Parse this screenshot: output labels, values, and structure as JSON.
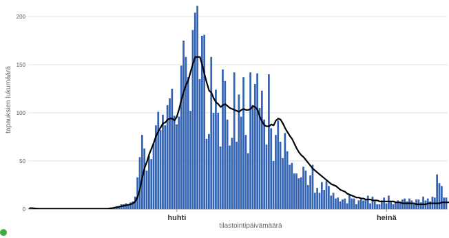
{
  "chart_data": {
    "type": "bar",
    "xlabel": "tilastointipäivämäärä",
    "ylabel": "tapauksien lukumäärä",
    "ylim": [
      0,
      210
    ],
    "yticks": [
      0,
      50,
      100,
      150,
      200
    ],
    "grid": true,
    "x_axis": {
      "start_date": "2020-01-28",
      "end_date": "2020-08-02"
    },
    "x_ticks": [
      {
        "label": "huhti",
        "date": "2020-04-01"
      },
      {
        "label": "heinä",
        "date": "2020-07-01"
      }
    ],
    "colors": {
      "bars": "#3464b4",
      "line": "#000000",
      "grid": "#e2e2e2",
      "legend": "#3cae3a"
    },
    "series": [
      {
        "kind": "bar",
        "values": [
          1,
          0,
          0,
          0,
          0,
          0,
          0,
          0,
          0,
          0,
          0,
          0,
          0,
          0,
          0,
          0,
          0,
          0,
          0,
          0,
          0,
          0,
          0,
          0,
          0,
          0,
          0,
          0,
          0,
          0,
          0,
          0,
          0,
          0,
          0,
          1,
          1,
          2,
          3,
          2,
          5,
          5,
          6,
          4,
          7,
          8,
          13,
          33,
          54,
          77,
          63,
          40,
          55,
          52,
          68,
          87,
          101,
          82,
          98,
          87,
          108,
          115,
          125,
          97,
          88,
          96,
          149,
          175,
          158,
          137,
          102,
          186,
          204,
          211,
          135,
          180,
          181,
          73,
          78,
          158,
          100,
          124,
          100,
          65,
          145,
          133,
          93,
          66,
          74,
          142,
          70,
          119,
          96,
          137,
          77,
          58,
          142,
          108,
          130,
          141,
          105,
          123,
          93,
          67,
          140,
          84,
          50,
          77,
          92,
          70,
          53,
          79,
          60,
          46,
          48,
          37,
          37,
          32,
          33,
          44,
          40,
          25,
          35,
          46,
          17,
          22,
          17,
          28,
          20,
          29,
          24,
          14,
          17,
          11,
          12,
          8,
          10,
          11,
          6,
          15,
          11,
          11,
          5,
          9,
          10,
          9,
          10,
          14,
          6,
          13,
          8,
          5,
          5,
          9,
          12,
          6,
          14,
          8,
          5,
          7,
          9,
          7,
          10,
          11,
          8,
          11,
          9,
          5,
          10,
          10,
          7,
          13,
          9,
          11,
          8,
          13,
          12,
          36,
          27,
          24,
          12,
          12
        ]
      },
      {
        "kind": "line",
        "values": [
          1,
          1,
          0.8,
          0.6,
          0.5,
          0.5,
          0.5,
          0.5,
          0.5,
          0.5,
          0.5,
          0.5,
          0.5,
          0.5,
          0.5,
          0.5,
          0.5,
          0.5,
          0.5,
          0.5,
          0.5,
          0.5,
          0.5,
          0.5,
          0.5,
          0.5,
          0.5,
          0.5,
          0.5,
          0.5,
          0.5,
          0.5,
          0.5,
          0.5,
          0.5,
          0.8,
          1,
          1.5,
          2,
          2.5,
          3,
          3.5,
          4,
          4.5,
          5,
          6,
          8,
          13,
          21,
          33,
          43,
          49,
          57,
          63,
          69,
          76,
          81,
          85,
          89,
          90,
          93,
          94,
          94,
          92,
          96,
          104,
          114,
          122,
          129,
          134,
          143,
          151,
          158,
          158,
          158,
          150,
          140,
          131,
          123,
          121,
          115,
          111,
          109,
          106,
          108,
          109,
          107,
          105,
          104,
          103,
          102,
          101,
          103,
          104,
          103,
          103,
          104,
          107,
          106,
          103,
          96,
          91,
          87,
          86,
          86,
          88,
          87,
          92,
          94,
          93,
          89,
          84,
          80,
          76,
          73,
          68,
          63,
          59,
          56,
          54,
          51,
          48,
          45,
          42,
          40,
          38,
          36,
          34,
          32,
          30,
          28,
          26,
          25,
          24,
          22,
          20,
          19,
          18,
          16,
          15,
          14,
          13,
          12,
          12,
          11,
          11,
          10,
          10,
          10,
          9,
          9,
          9,
          8,
          8,
          8,
          8,
          8,
          8,
          8,
          7,
          7,
          7,
          6,
          6,
          6,
          6,
          6,
          6,
          5,
          5,
          5,
          5,
          5,
          6,
          6,
          6,
          6,
          6,
          6,
          7,
          7,
          7,
          7,
          7,
          7,
          8,
          8,
          8,
          8,
          9,
          9,
          10,
          12,
          14,
          17,
          20,
          21,
          20,
          16,
          14
        ]
      }
    ]
  }
}
